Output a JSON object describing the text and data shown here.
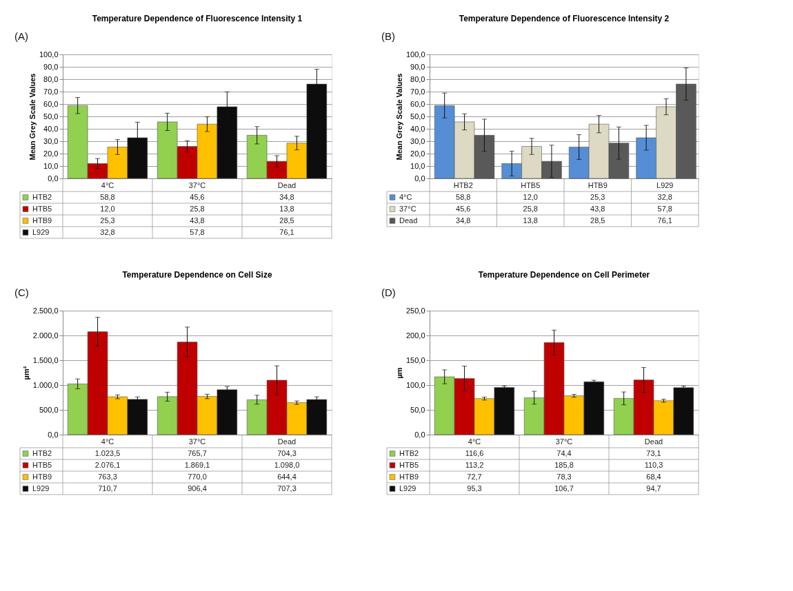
{
  "chart_data": [
    {
      "type": "bar",
      "title": "Temperature Dependence of Fluorescence Intensity 1",
      "ylabel": "Mean Grey Scale Values",
      "annotations": [
        "(A)"
      ],
      "categories": [
        "4°C",
        "37°C",
        "Dead"
      ],
      "grid": "y",
      "legend": "bottom",
      "ylim": [
        0,
        100
      ],
      "yticks": [
        {
          "value": 0,
          "label": "0,0"
        },
        {
          "value": 10,
          "label": "10,0"
        },
        {
          "value": 20,
          "label": "20,0"
        },
        {
          "value": 30,
          "label": "30,0"
        },
        {
          "value": 40,
          "label": "40,0"
        },
        {
          "value": 50,
          "label": "50,0"
        },
        {
          "value": 60,
          "label": "60,0"
        },
        {
          "value": 70,
          "label": "70,0"
        },
        {
          "value": 80,
          "label": "80,0"
        },
        {
          "value": 90,
          "label": "90,0"
        },
        {
          "value": 100,
          "label": "100,0"
        }
      ],
      "series": [
        {
          "name": "HTB2",
          "color": "#92d050",
          "values": [
            58.8,
            45.6,
            34.8
          ],
          "errors": [
            6.5,
            7,
            7
          ],
          "value_labels": [
            "58,8",
            "45,6",
            "34,8"
          ]
        },
        {
          "name": "HTB5",
          "color": "#c00000",
          "values": [
            12.0,
            25.8,
            13.8
          ],
          "errors": [
            4,
            4.5,
            4.5
          ],
          "value_labels": [
            "12,0",
            "25,8",
            "13,8"
          ]
        },
        {
          "name": "HTB9",
          "color": "#ffc000",
          "values": [
            25.3,
            43.8,
            28.5
          ],
          "errors": [
            6,
            6,
            5.5
          ],
          "value_labels": [
            "25,3",
            "43,8",
            "28,5"
          ]
        },
        {
          "name": "L929",
          "color": "#0d0d0d",
          "values": [
            32.8,
            57.8,
            76.1
          ],
          "errors": [
            12.5,
            12,
            12
          ],
          "value_labels": [
            "32,8",
            "57,8",
            "76,1"
          ]
        }
      ]
    },
    {
      "type": "bar",
      "title": "Temperature Dependence of Fluorescence Intensity 2",
      "ylabel": "Mean Grey Scale Values",
      "annotations": [
        "(B)"
      ],
      "categories": [
        "HTB2",
        "HTB5",
        "HTB9",
        "L929"
      ],
      "grid": "y",
      "legend": "bottom",
      "ylim": [
        0,
        100
      ],
      "yticks": [
        {
          "value": 0,
          "label": "0,0"
        },
        {
          "value": 10,
          "label": "10,0"
        },
        {
          "value": 20,
          "label": "20,0"
        },
        {
          "value": 30,
          "label": "30,0"
        },
        {
          "value": 40,
          "label": "40,0"
        },
        {
          "value": 50,
          "label": "50,0"
        },
        {
          "value": 60,
          "label": "60,0"
        },
        {
          "value": 70,
          "label": "70,0"
        },
        {
          "value": 80,
          "label": "80,0"
        },
        {
          "value": 90,
          "label": "90,0"
        },
        {
          "value": 100,
          "label": "100,0"
        }
      ],
      "series": [
        {
          "name": "4°C",
          "color": "#558ed5",
          "values": [
            58.8,
            12.0,
            25.3,
            32.8
          ],
          "errors": [
            10,
            10,
            10,
            10
          ],
          "value_labels": [
            "58,8",
            "12,0",
            "25,3",
            "32,8"
          ]
        },
        {
          "name": "37°C",
          "color": "#ddd9c3",
          "values": [
            45.6,
            25.8,
            43.8,
            57.8
          ],
          "errors": [
            6.5,
            6.5,
            7,
            6.5
          ],
          "value_labels": [
            "45,6",
            "25,8",
            "43,8",
            "57,8"
          ]
        },
        {
          "name": "Dead",
          "color": "#595959",
          "values": [
            34.8,
            13.8,
            28.5,
            76.1
          ],
          "errors": [
            13,
            13,
            13,
            13
          ],
          "value_labels": [
            "34,8",
            "13,8",
            "28,5",
            "76,1"
          ]
        }
      ]
    },
    {
      "type": "bar",
      "title": "Temperature Dependence on Cell Size",
      "ylabel": "µm²",
      "annotations": [
        "(C)"
      ],
      "categories": [
        "4°C",
        "37°C",
        "Dead"
      ],
      "grid": "y",
      "legend": "bottom",
      "ylim": [
        0,
        2500
      ],
      "yticks": [
        {
          "value": 0,
          "label": "0,0"
        },
        {
          "value": 500,
          "label": "500,0"
        },
        {
          "value": 1000,
          "label": "1.000,0"
        },
        {
          "value": 1500,
          "label": "1.500,0"
        },
        {
          "value": 2000,
          "label": "2.000,0"
        },
        {
          "value": 2500,
          "label": "2.500,0"
        }
      ],
      "series": [
        {
          "name": "HTB2",
          "color": "#92d050",
          "values": [
            1023.5,
            765.7,
            704.3
          ],
          "errors": [
            100,
            90,
            90
          ],
          "value_labels": [
            "1.023,5",
            "765,7",
            "704,3"
          ]
        },
        {
          "name": "HTB5",
          "color": "#c00000",
          "values": [
            2076.1,
            1869.1,
            1098.0
          ],
          "errors": [
            290,
            300,
            290
          ],
          "value_labels": [
            "2.076,1",
            "1.869,1",
            "1.098,0"
          ]
        },
        {
          "name": "HTB9",
          "color": "#ffc000",
          "values": [
            763.3,
            770.0,
            644.4
          ],
          "errors": [
            40,
            45,
            35
          ],
          "value_labels": [
            "763,3",
            "770,0",
            "644,4"
          ]
        },
        {
          "name": "L929",
          "color": "#0d0d0d",
          "values": [
            710.7,
            906.4,
            707.3
          ],
          "errors": [
            50,
            65,
            55
          ],
          "value_labels": [
            "710,7",
            "906,4",
            "707,3"
          ]
        }
      ]
    },
    {
      "type": "bar",
      "title": "Temperature Dependence on Cell Perimeter",
      "ylabel": "µm",
      "annotations": [
        "(D)"
      ],
      "categories": [
        "4°C",
        "37°C",
        "Dead"
      ],
      "grid": "y",
      "legend": "bottom",
      "ylim": [
        0,
        250
      ],
      "yticks": [
        {
          "value": 0,
          "label": "0,0"
        },
        {
          "value": 50,
          "label": "50,0"
        },
        {
          "value": 100,
          "label": "100,0"
        },
        {
          "value": 150,
          "label": "150,0"
        },
        {
          "value": 200,
          "label": "200,0"
        },
        {
          "value": 250,
          "label": "250,0"
        }
      ],
      "series": [
        {
          "name": "HTB2",
          "color": "#92d050",
          "values": [
            116.6,
            74.4,
            73.1
          ],
          "errors": [
            14,
            13,
            13
          ],
          "value_labels": [
            "116,6",
            "74,4",
            "73,1"
          ]
        },
        {
          "name": "HTB5",
          "color": "#c00000",
          "values": [
            113.2,
            185.8,
            110.3
          ],
          "errors": [
            25,
            25,
            25
          ],
          "value_labels": [
            "113,2",
            "185,8",
            "110,3"
          ]
        },
        {
          "name": "HTB9",
          "color": "#ffc000",
          "values": [
            72.7,
            78.3,
            68.4
          ],
          "errors": [
            3,
            3,
            3
          ],
          "value_labels": [
            "72,7",
            "78,3",
            "68,4"
          ]
        },
        {
          "name": "L929",
          "color": "#0d0d0d",
          "values": [
            95.3,
            106.7,
            94.7
          ],
          "errors": [
            3,
            3,
            3
          ],
          "value_labels": [
            "95,3",
            "106,7",
            "94,7"
          ]
        }
      ]
    }
  ]
}
